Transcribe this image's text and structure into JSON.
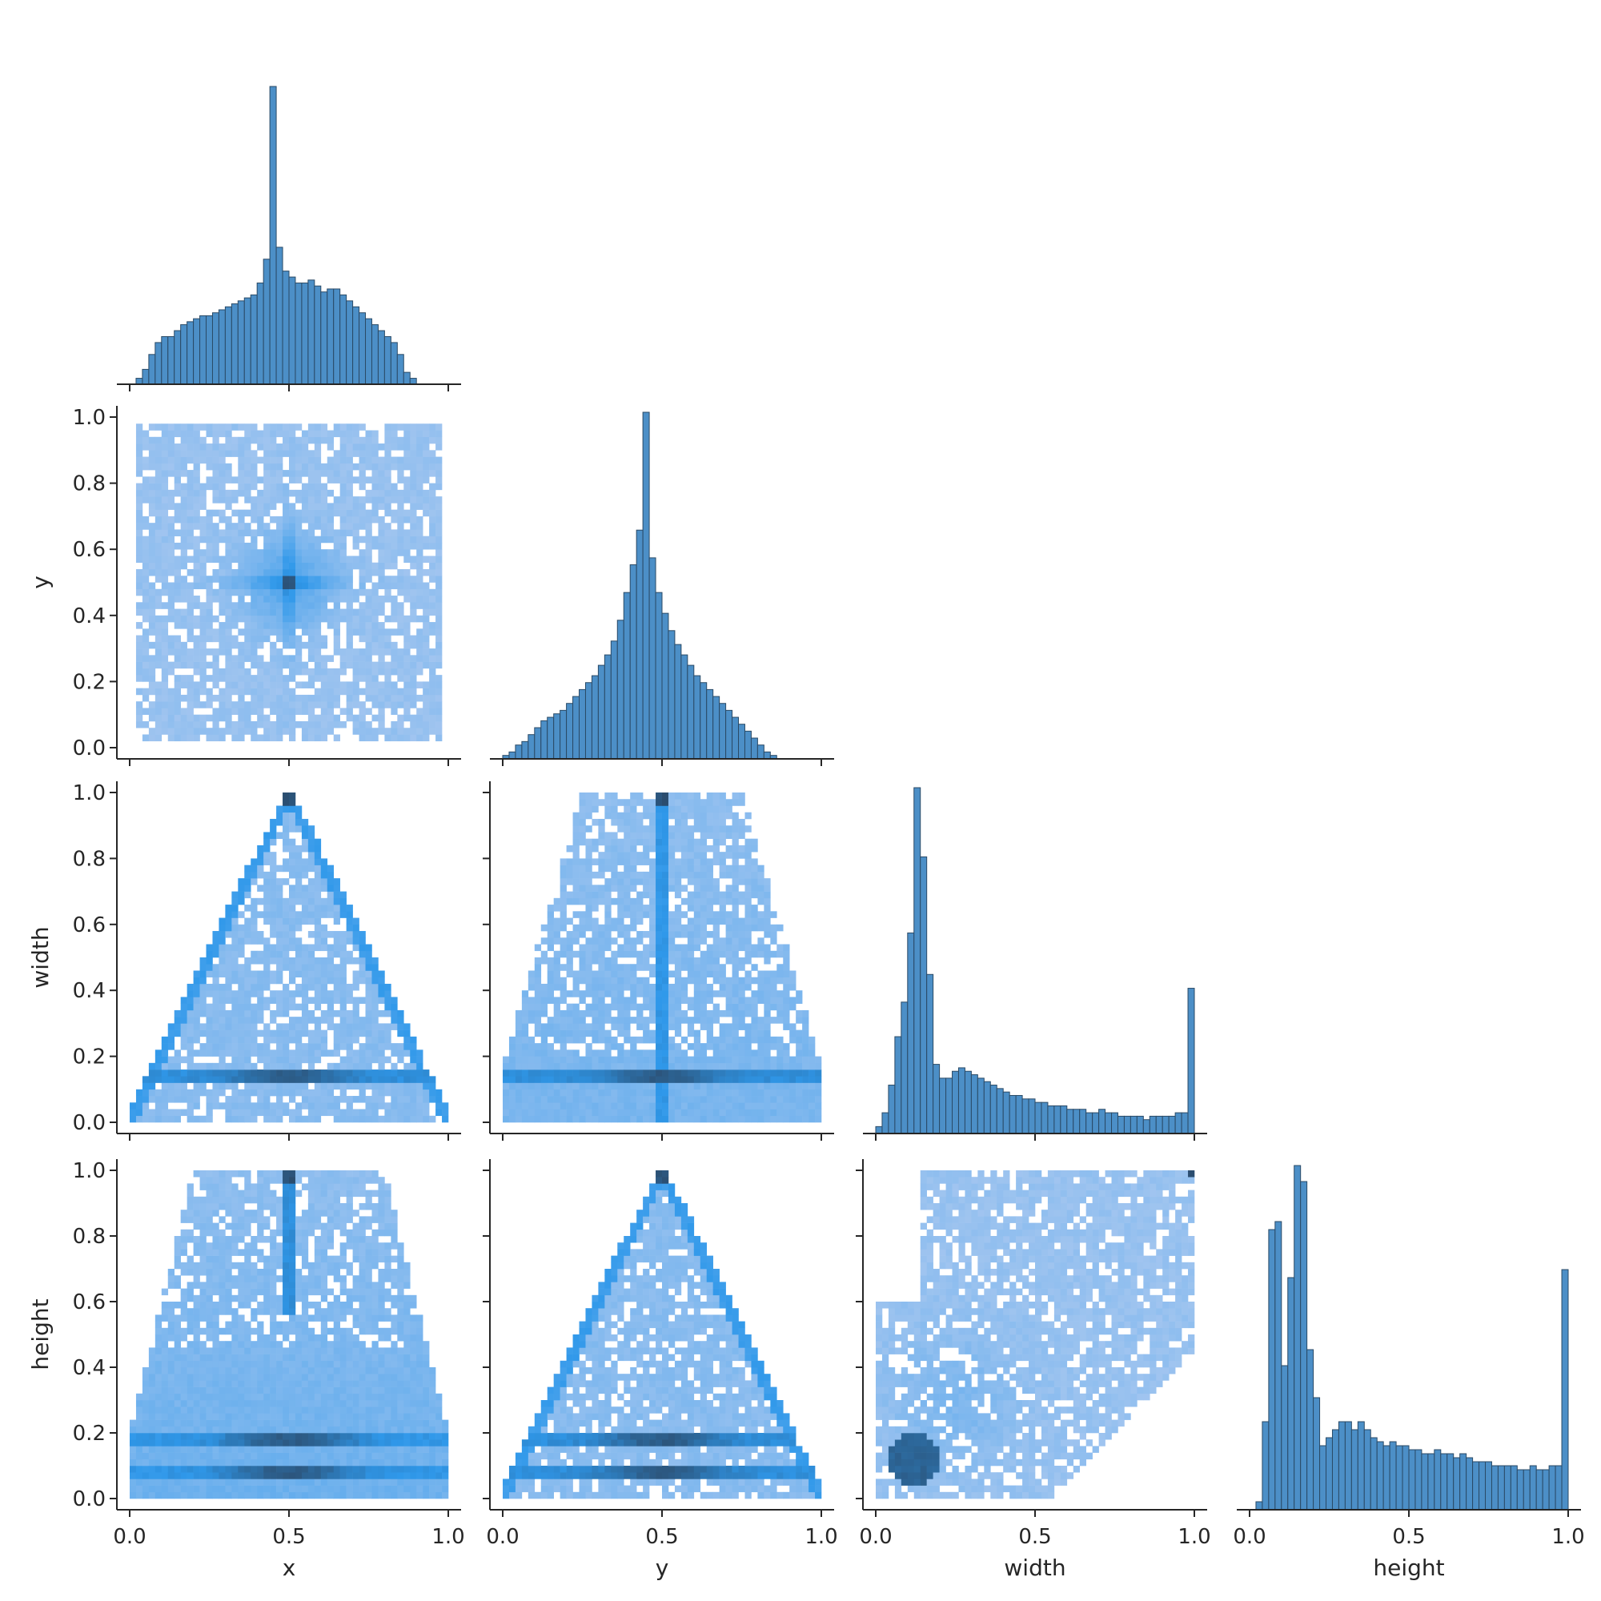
{
  "chart_data": {
    "type": "pairplot",
    "variables": [
      "x",
      "y",
      "width",
      "height"
    ],
    "colors": {
      "bar_fill": "#4c8fc7",
      "bar_edge": "#2a4a66",
      "hist2d_light": "#a9c8f0",
      "hist2d_mid": "#2f98ea",
      "hist2d_dark": "#2b4a6a",
      "axis": "#262626"
    },
    "tick_values": [
      0.0,
      0.5,
      1.0
    ],
    "ylabel_tick_values": [
      0.0,
      0.2,
      0.4,
      0.6,
      0.8,
      1.0
    ],
    "tick_labels_x": [
      "0.0",
      "0.5",
      "1.0"
    ],
    "tick_labels_y": [
      "0.0",
      "0.2",
      "0.4",
      "0.6",
      "0.8",
      "1.0"
    ],
    "diagonal": [
      {
        "variable": "x",
        "type": "histogram",
        "bins": 50,
        "range": [
          0,
          1
        ],
        "counts": [
          0,
          2,
          5,
          10,
          14,
          16,
          16,
          18,
          20,
          21,
          22,
          23,
          23,
          24,
          25,
          26,
          27,
          28,
          29,
          30,
          34,
          42,
          100,
          46,
          38,
          36,
          34,
          34,
          35,
          33,
          31,
          32,
          32,
          30,
          28,
          26,
          24,
          22,
          20,
          18,
          16,
          14,
          10,
          4,
          2,
          0,
          0,
          0,
          0,
          0
        ]
      },
      {
        "variable": "y",
        "type": "histogram",
        "bins": 50,
        "range": [
          0,
          1
        ],
        "counts": [
          1,
          2,
          4,
          5,
          7,
          9,
          11,
          12,
          13,
          14,
          16,
          18,
          20,
          22,
          24,
          27,
          30,
          34,
          40,
          48,
          56,
          66,
          100,
          58,
          48,
          42,
          37,
          33,
          30,
          27,
          24,
          22,
          20,
          18,
          16,
          14,
          12,
          10,
          8,
          6,
          4,
          2,
          1,
          0,
          0,
          0,
          0,
          0,
          0,
          0
        ]
      },
      {
        "variable": "width",
        "type": "histogram",
        "bins": 50,
        "range": [
          0,
          1
        ],
        "counts": [
          2,
          6,
          14,
          28,
          38,
          58,
          100,
          80,
          46,
          20,
          16,
          16,
          18,
          19,
          18,
          17,
          16,
          15,
          14,
          13,
          12,
          11,
          11,
          10,
          10,
          9,
          9,
          8,
          8,
          8,
          7,
          7,
          7,
          6,
          6,
          7,
          6,
          6,
          5,
          5,
          5,
          5,
          4,
          5,
          5,
          5,
          5,
          6,
          6,
          42
        ]
      },
      {
        "variable": "height",
        "type": "histogram",
        "bins": 50,
        "range": [
          0,
          1
        ],
        "counts": [
          0,
          2,
          22,
          70,
          72,
          36,
          58,
          86,
          82,
          40,
          28,
          16,
          18,
          20,
          22,
          22,
          20,
          22,
          20,
          18,
          17,
          16,
          17,
          16,
          16,
          15,
          15,
          14,
          14,
          15,
          14,
          14,
          13,
          14,
          13,
          12,
          12,
          12,
          11,
          11,
          11,
          11,
          10,
          10,
          11,
          10,
          10,
          11,
          11,
          60
        ]
      }
    ],
    "offdiagonal": [
      {
        "x": "x",
        "y": "y",
        "type": "hist2d",
        "pattern": "dense-center-star",
        "center": [
          0.5,
          0.5
        ]
      },
      {
        "x": "x",
        "y": "width",
        "type": "hist2d",
        "pattern": "triangle",
        "apex": [
          0.5,
          1.0
        ],
        "band_y": 0.14
      },
      {
        "x": "y",
        "y": "width",
        "type": "hist2d",
        "pattern": "vertical-stripe-with-band",
        "stripe_x": 0.5,
        "band_y": 0.14
      },
      {
        "x": "x",
        "y": "height",
        "type": "hist2d",
        "pattern": "vertical-stripe-with-two-bands",
        "stripe_x": 0.5,
        "band_y": [
          0.18,
          0.08
        ]
      },
      {
        "x": "y",
        "y": "height",
        "type": "hist2d",
        "pattern": "triangle",
        "apex": [
          0.5,
          1.0
        ],
        "band_y": [
          0.18,
          0.08
        ]
      },
      {
        "x": "width",
        "y": "height",
        "type": "hist2d",
        "pattern": "upper-triangle",
        "hotspot": [
          0.12,
          0.12
        ],
        "corner": [
          1.0,
          1.0
        ]
      }
    ],
    "xlabels": [
      "x",
      "y",
      "width",
      "height"
    ],
    "ylabels": [
      "",
      "y",
      "width",
      "height"
    ]
  }
}
